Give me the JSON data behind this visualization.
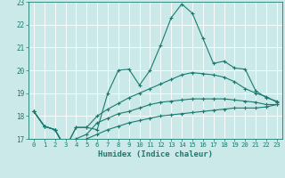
{
  "xlabel": "Humidex (Indice chaleur)",
  "background_color": "#cce9e9",
  "grid_color": "#ffffff",
  "line_color": "#1a7a6e",
  "xlim": [
    -0.5,
    23.5
  ],
  "ylim": [
    17,
    23
  ],
  "yticks": [
    17,
    18,
    19,
    20,
    21,
    22,
    23
  ],
  "xticks": [
    0,
    1,
    2,
    3,
    4,
    5,
    6,
    7,
    8,
    9,
    10,
    11,
    12,
    13,
    14,
    15,
    16,
    17,
    18,
    19,
    20,
    21,
    22,
    23
  ],
  "line1_x": [
    0,
    1,
    2,
    3,
    4,
    5,
    6,
    7,
    8,
    9,
    10,
    11,
    12,
    13,
    14,
    15,
    16,
    17,
    18,
    19,
    20,
    21,
    22,
    23
  ],
  "line1_y": [
    18.2,
    17.55,
    17.4,
    16.6,
    17.5,
    17.5,
    17.4,
    19.0,
    20.0,
    20.05,
    19.35,
    20.0,
    21.1,
    22.3,
    22.9,
    22.5,
    21.4,
    20.3,
    20.4,
    20.1,
    20.05,
    19.1,
    18.8,
    18.65
  ],
  "line2_x": [
    0,
    1,
    2,
    3,
    4,
    5,
    6,
    7,
    8,
    9,
    10,
    11,
    12,
    13,
    14,
    15,
    16,
    17,
    18,
    19,
    20,
    21,
    22,
    23
  ],
  "line2_y": [
    18.2,
    17.55,
    17.4,
    16.6,
    17.5,
    17.5,
    18.0,
    18.3,
    18.55,
    18.8,
    19.0,
    19.2,
    19.4,
    19.6,
    19.8,
    19.9,
    19.85,
    19.8,
    19.7,
    19.5,
    19.2,
    19.0,
    18.85,
    18.6
  ],
  "line3_x": [
    0,
    1,
    2,
    3,
    4,
    5,
    6,
    7,
    8,
    9,
    10,
    11,
    12,
    13,
    14,
    15,
    16,
    17,
    18,
    19,
    20,
    21,
    22,
    23
  ],
  "line3_y": [
    18.2,
    17.55,
    17.4,
    16.6,
    17.0,
    17.2,
    17.7,
    17.9,
    18.1,
    18.2,
    18.35,
    18.5,
    18.6,
    18.65,
    18.7,
    18.75,
    18.75,
    18.75,
    18.75,
    18.7,
    18.65,
    18.6,
    18.5,
    18.5
  ],
  "line4_x": [
    0,
    1,
    2,
    3,
    4,
    5,
    6,
    7,
    8,
    9,
    10,
    11,
    12,
    13,
    14,
    15,
    16,
    17,
    18,
    19,
    20,
    21,
    22,
    23
  ],
  "line4_y": [
    18.2,
    17.55,
    17.4,
    16.6,
    16.8,
    17.0,
    17.2,
    17.4,
    17.55,
    17.7,
    17.8,
    17.9,
    18.0,
    18.05,
    18.1,
    18.15,
    18.2,
    18.25,
    18.3,
    18.35,
    18.35,
    18.35,
    18.4,
    18.5
  ]
}
